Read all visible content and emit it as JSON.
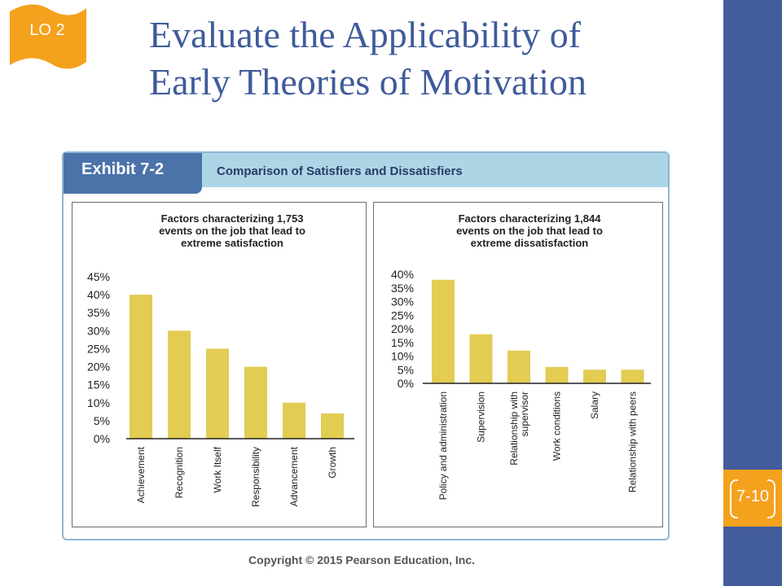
{
  "lo_tag": "LO 2",
  "title_lines": [
    "Evaluate the Applicability of",
    "Early Theories of Motivation"
  ],
  "exhibit": {
    "label": "Exhibit 7-2",
    "title": "Comparison of Satisfiers and Dissatisfiers"
  },
  "page_number": "7-10",
  "copyright": "Copyright © 2015 Pearson Education, Inc.",
  "colors": {
    "bar": "#e2cc52",
    "title": "#3f5b9b",
    "band": "#435c9c",
    "accent": "#f4a11d",
    "exhibit_header": "#add5e6",
    "exhibit_tab": "#4b73aa"
  },
  "chart_data": [
    {
      "type": "bar",
      "title_lines": [
        "Factors characterizing 1,753",
        "events on the job that lead to",
        "extreme satisfaction"
      ],
      "categories": [
        "Achievement",
        "Recognition",
        "Work Itself",
        "Responsibility",
        "Advancement",
        "Growth"
      ],
      "values": [
        40,
        30,
        25,
        20,
        10,
        7
      ],
      "ylim": [
        0,
        45
      ],
      "yticks": [
        "0%",
        "5%",
        "10%",
        "15%",
        "20%",
        "25%",
        "30%",
        "35%",
        "40%",
        "45%"
      ],
      "xlabel": "",
      "ylabel": "",
      "grid": false
    },
    {
      "type": "bar",
      "title_lines": [
        "Factors characterizing 1,844",
        "events on the job that lead to",
        "extreme dissatisfaction"
      ],
      "categories": [
        "Policy and administration",
        "Supervision",
        [
          "Relationship with",
          "supervisor"
        ],
        "Work conditions",
        "Salary",
        "Relationship with peers"
      ],
      "values": [
        38,
        18,
        12,
        6,
        5,
        5
      ],
      "ylim": [
        0,
        40
      ],
      "yticks": [
        "0%",
        "5%",
        "10%",
        "15%",
        "20%",
        "25%",
        "30%",
        "35%",
        "40%"
      ],
      "xlabel": "",
      "ylabel": "",
      "grid": false
    }
  ]
}
